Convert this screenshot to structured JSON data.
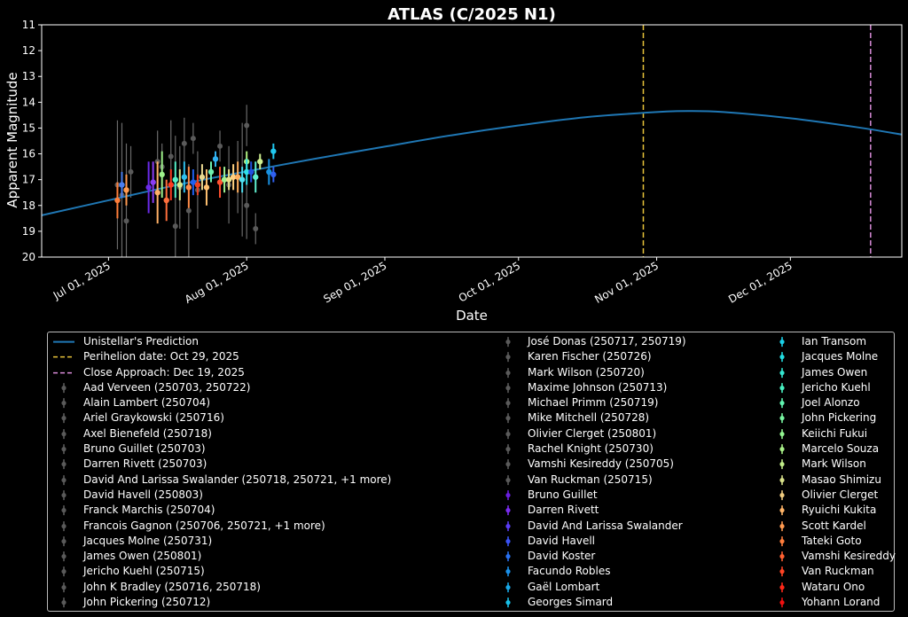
{
  "chart_data": {
    "type": "scatter",
    "title": "ATLAS (C/2025 N1)",
    "xlabel": "Date",
    "ylabel": "Apparent Magnitude",
    "xlim": [
      "2025-06-16",
      "2025-12-26"
    ],
    "ylim": [
      20,
      11
    ],
    "y_inverted": true,
    "yticks": [
      11,
      12,
      13,
      14,
      15,
      16,
      17,
      18,
      19,
      20
    ],
    "xticks": [
      {
        "date": "2025-07-01",
        "label": "Jul 01, 2025"
      },
      {
        "date": "2025-08-01",
        "label": "Aug 01, 2025"
      },
      {
        "date": "2025-09-01",
        "label": "Sep 01, 2025"
      },
      {
        "date": "2025-10-01",
        "label": "Oct 01, 2025"
      },
      {
        "date": "2025-11-01",
        "label": "Nov 01, 2025"
      },
      {
        "date": "2025-12-01",
        "label": "Dec 01, 2025"
      }
    ],
    "legend_position": "bottom",
    "prediction": {
      "name": "Unistellar's Prediction",
      "color": "#1f77b4",
      "x": [
        "2025-06-16",
        "2025-07-01",
        "2025-07-16",
        "2025-08-01",
        "2025-08-16",
        "2025-09-01",
        "2025-09-16",
        "2025-10-01",
        "2025-10-16",
        "2025-11-01",
        "2025-11-08",
        "2025-11-16",
        "2025-12-01",
        "2025-12-16",
        "2025-12-26"
      ],
      "y": [
        18.38,
        17.8,
        17.22,
        16.68,
        16.2,
        15.72,
        15.28,
        14.9,
        14.58,
        14.38,
        14.34,
        14.38,
        14.62,
        14.97,
        15.25
      ]
    },
    "vlines": [
      {
        "name": "Perihelion date: Oct 29, 2025",
        "date": "2025-10-29",
        "color": "#e8c33a"
      },
      {
        "name": "Close Approach: Dec 19, 2025",
        "date": "2025-12-19",
        "color": "#d98cd9"
      }
    ],
    "gray_points": [
      {
        "x": "2025-07-03",
        "y": 17.2,
        "err": 2.5
      },
      {
        "x": "2025-07-04",
        "y": 17.6,
        "err": 2.8
      },
      {
        "x": "2025-07-05",
        "y": 18.6,
        "err": 3.0
      },
      {
        "x": "2025-07-06",
        "y": 16.7,
        "err": 1.0
      },
      {
        "x": "2025-07-12",
        "y": 16.3,
        "err": 1.2
      },
      {
        "x": "2025-07-13",
        "y": 16.5,
        "err": 0.9
      },
      {
        "x": "2025-07-15",
        "y": 16.1,
        "err": 1.4
      },
      {
        "x": "2025-07-16",
        "y": 18.8,
        "err": 3.5
      },
      {
        "x": "2025-07-17",
        "y": 17.3,
        "err": 1.6
      },
      {
        "x": "2025-07-18",
        "y": 15.6,
        "err": 1.0
      },
      {
        "x": "2025-07-19",
        "y": 18.2,
        "err": 1.8
      },
      {
        "x": "2025-07-20",
        "y": 15.4,
        "err": 0.6
      },
      {
        "x": "2025-07-21",
        "y": 17.4,
        "err": 1.5
      },
      {
        "x": "2025-07-26",
        "y": 15.7,
        "err": 0.6
      },
      {
        "x": "2025-07-28",
        "y": 17.2,
        "err": 1.5
      },
      {
        "x": "2025-07-30",
        "y": 16.9,
        "err": 1.4
      },
      {
        "x": "2025-07-31",
        "y": 17.0,
        "err": 2.2
      },
      {
        "x": "2025-08-01",
        "y": 14.9,
        "err": 0.8
      },
      {
        "x": "2025-08-01",
        "y": 18.0,
        "err": 1.3
      },
      {
        "x": "2025-08-03",
        "y": 18.9,
        "err": 0.6
      }
    ],
    "colored_points": [
      {
        "x": "2025-07-03",
        "y": 17.8,
        "err": 0.7,
        "color": "#ff7e3a"
      },
      {
        "x": "2025-07-04",
        "y": 17.2,
        "err": 0.5,
        "color": "#4a7ff0"
      },
      {
        "x": "2025-07-05",
        "y": 17.4,
        "err": 0.6,
        "color": "#ff9a50"
      },
      {
        "x": "2025-07-10",
        "y": 17.3,
        "err": 1.0,
        "color": "#6a2ae8"
      },
      {
        "x": "2025-07-11",
        "y": 17.1,
        "err": 0.8,
        "color": "#8a3cf5"
      },
      {
        "x": "2025-07-12",
        "y": 17.5,
        "err": 1.2,
        "color": "#ffb066"
      },
      {
        "x": "2025-07-13",
        "y": 16.8,
        "err": 0.9,
        "color": "#9ef08a"
      },
      {
        "x": "2025-07-14",
        "y": 17.8,
        "err": 0.8,
        "color": "#ff6f3c"
      },
      {
        "x": "2025-07-15",
        "y": 17.2,
        "err": 0.6,
        "color": "#ff3b20"
      },
      {
        "x": "2025-07-16",
        "y": 17.0,
        "err": 0.7,
        "color": "#55f0c8"
      },
      {
        "x": "2025-07-17",
        "y": 17.2,
        "err": 0.6,
        "color": "#d8e88a"
      },
      {
        "x": "2025-07-18",
        "y": 16.9,
        "err": 0.6,
        "color": "#30c0ee"
      },
      {
        "x": "2025-07-19",
        "y": 17.3,
        "err": 0.8,
        "color": "#ff8c4a"
      },
      {
        "x": "2025-07-20",
        "y": 17.1,
        "err": 0.5,
        "color": "#2060f0"
      },
      {
        "x": "2025-07-21",
        "y": 17.2,
        "err": 0.4,
        "color": "#f04020"
      },
      {
        "x": "2025-07-22",
        "y": 16.9,
        "err": 0.5,
        "color": "#e8d890"
      },
      {
        "x": "2025-07-23",
        "y": 17.3,
        "err": 0.7,
        "color": "#ffc070"
      },
      {
        "x": "2025-07-24",
        "y": 16.7,
        "err": 0.4,
        "color": "#70f0b0"
      },
      {
        "x": "2025-07-25",
        "y": 16.2,
        "err": 0.3,
        "color": "#30b0f0"
      },
      {
        "x": "2025-07-26",
        "y": 17.1,
        "err": 0.6,
        "color": "#ff5030"
      },
      {
        "x": "2025-07-27",
        "y": 17.0,
        "err": 0.5,
        "color": "#a0f090"
      },
      {
        "x": "2025-07-28",
        "y": 17.0,
        "err": 0.4,
        "color": "#e8e08a"
      },
      {
        "x": "2025-07-29",
        "y": 16.9,
        "err": 0.5,
        "color": "#ffd080"
      },
      {
        "x": "2025-07-30",
        "y": 16.9,
        "err": 0.6,
        "color": "#ffb060"
      },
      {
        "x": "2025-07-31",
        "y": 17.0,
        "err": 0.5,
        "color": "#50e0f0"
      },
      {
        "x": "2025-08-01",
        "y": 16.3,
        "err": 0.4,
        "color": "#b0f080"
      },
      {
        "x": "2025-08-01",
        "y": 16.7,
        "err": 0.5,
        "color": "#30e0e8"
      },
      {
        "x": "2025-08-02",
        "y": 16.7,
        "err": 0.4,
        "color": "#2050e0"
      },
      {
        "x": "2025-08-03",
        "y": 16.9,
        "err": 0.6,
        "color": "#60f0d0"
      },
      {
        "x": "2025-08-04",
        "y": 16.3,
        "err": 0.3,
        "color": "#d0f090"
      },
      {
        "x": "2025-08-06",
        "y": 16.7,
        "err": 0.5,
        "color": "#1890e0"
      },
      {
        "x": "2025-08-07",
        "y": 15.9,
        "err": 0.3,
        "color": "#20c8f0"
      },
      {
        "x": "2025-08-07",
        "y": 16.8,
        "err": 0.3,
        "color": "#3060f0"
      }
    ],
    "legend": {
      "columns": [
        [
          {
            "label": "Unistellar's Prediction",
            "kind": "line",
            "color": "#1f77b4"
          },
          {
            "label": "Perihelion date: Oct 29, 2025",
            "kind": "dash",
            "color": "#e8c33a"
          },
          {
            "label": "Close Approach: Dec 19, 2025",
            "kind": "dash",
            "color": "#d98cd9"
          },
          {
            "label": "Aad Verveen (250703, 250722)",
            "kind": "err",
            "color": "#5a5a5a"
          },
          {
            "label": "Alain Lambert (250704)",
            "kind": "err",
            "color": "#5a5a5a"
          },
          {
            "label": "Ariel Graykowski (250716)",
            "kind": "err",
            "color": "#5a5a5a"
          },
          {
            "label": "Axel Bienefeld (250718)",
            "kind": "err",
            "color": "#5a5a5a"
          },
          {
            "label": "Bruno Guillet (250703)",
            "kind": "err",
            "color": "#5a5a5a"
          },
          {
            "label": "Darren Rivett (250703)",
            "kind": "err",
            "color": "#5a5a5a"
          },
          {
            "label": "David And Larissa Swalander (250718, 250721, +1 more)",
            "kind": "err",
            "color": "#5a5a5a"
          },
          {
            "label": "David Havell (250803)",
            "kind": "err",
            "color": "#5a5a5a"
          },
          {
            "label": "Franck Marchis (250704)",
            "kind": "err",
            "color": "#5a5a5a"
          },
          {
            "label": "Francois Gagnon (250706, 250721, +1 more)",
            "kind": "err",
            "color": "#5a5a5a"
          },
          {
            "label": "Jacques Molne (250731)",
            "kind": "err",
            "color": "#5a5a5a"
          },
          {
            "label": "James Owen (250801)",
            "kind": "err",
            "color": "#5a5a5a"
          },
          {
            "label": "Jericho Kuehl (250715)",
            "kind": "err",
            "color": "#5a5a5a"
          },
          {
            "label": "John K Bradley (250716, 250718)",
            "kind": "err",
            "color": "#5a5a5a"
          },
          {
            "label": "John Pickering (250712)",
            "kind": "err",
            "color": "#5a5a5a"
          }
        ],
        [
          {
            "label": "José Donas (250717, 250719)",
            "kind": "err",
            "color": "#5a5a5a"
          },
          {
            "label": "Karen Fischer (250726)",
            "kind": "err",
            "color": "#5a5a5a"
          },
          {
            "label": "Mark Wilson (250720)",
            "kind": "err",
            "color": "#5a5a5a"
          },
          {
            "label": "Maxime Johnson (250713)",
            "kind": "err",
            "color": "#5a5a5a"
          },
          {
            "label": "Michael Primm (250719)",
            "kind": "err",
            "color": "#5a5a5a"
          },
          {
            "label": "Mike Mitchell (250728)",
            "kind": "err",
            "color": "#5a5a5a"
          },
          {
            "label": "Olivier Clerget (250801)",
            "kind": "err",
            "color": "#5a5a5a"
          },
          {
            "label": "Rachel Knight (250730)",
            "kind": "err",
            "color": "#5a5a5a"
          },
          {
            "label": "Vamshi Kesireddy (250705)",
            "kind": "err",
            "color": "#5a5a5a"
          },
          {
            "label": "Van Ruckman (250715)",
            "kind": "err",
            "color": "#5a5a5a"
          },
          {
            "label": "Bruno Guillet",
            "kind": "err",
            "color": "#6a1ee0"
          },
          {
            "label": "Darren Rivett",
            "kind": "err",
            "color": "#7a2cf0"
          },
          {
            "label": "David And Larissa Swalander",
            "kind": "err",
            "color": "#5a3cf5"
          },
          {
            "label": "David Havell",
            "kind": "err",
            "color": "#3a52f5"
          },
          {
            "label": "David Koster",
            "kind": "err",
            "color": "#2870f0"
          },
          {
            "label": "Facundo Robles",
            "kind": "err",
            "color": "#1a90ea"
          },
          {
            "label": "Gaël Lombart",
            "kind": "err",
            "color": "#18a8e8"
          },
          {
            "label": "Georges Simard",
            "kind": "err",
            "color": "#18c0e8"
          }
        ],
        [
          {
            "label": "Ian Transom",
            "kind": "err",
            "color": "#1ad0e8"
          },
          {
            "label": "Jacques Molne",
            "kind": "err",
            "color": "#22dce0"
          },
          {
            "label": "James Owen",
            "kind": "err",
            "color": "#34e6d0"
          },
          {
            "label": "Jericho Kuehl",
            "kind": "err",
            "color": "#48f0c0"
          },
          {
            "label": "Joel Alonzo",
            "kind": "err",
            "color": "#60f4b0"
          },
          {
            "label": "John Pickering",
            "kind": "err",
            "color": "#78f4a0"
          },
          {
            "label": "Keiichi Fukui",
            "kind": "err",
            "color": "#92f490"
          },
          {
            "label": "Marcelo Souza",
            "kind": "err",
            "color": "#a8f088"
          },
          {
            "label": "Mark Wilson",
            "kind": "err",
            "color": "#c0ec88"
          },
          {
            "label": "Masao Shimizu",
            "kind": "err",
            "color": "#d8e08a"
          },
          {
            "label": "Olivier Clerget",
            "kind": "err",
            "color": "#f0cc80"
          },
          {
            "label": "Ryuichi Kukita",
            "kind": "err",
            "color": "#ffb468"
          },
          {
            "label": "Scott Kardel",
            "kind": "err",
            "color": "#ff9a50"
          },
          {
            "label": "Tateki Goto",
            "kind": "err",
            "color": "#ff7e3c"
          },
          {
            "label": "Vamshi Kesireddy",
            "kind": "err",
            "color": "#ff6030"
          },
          {
            "label": "Van Ruckman",
            "kind": "err",
            "color": "#ff4424"
          },
          {
            "label": "Wataru Ono",
            "kind": "err",
            "color": "#ff2818"
          },
          {
            "label": "Yohann Lorand",
            "kind": "err",
            "color": "#f01010"
          }
        ]
      ]
    }
  }
}
